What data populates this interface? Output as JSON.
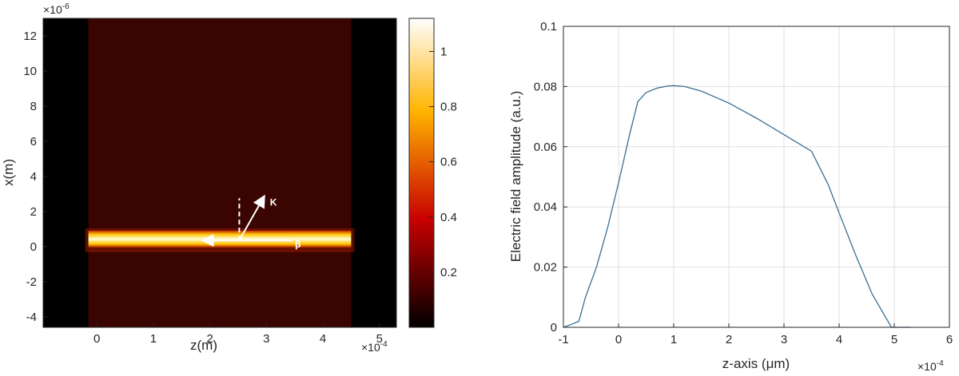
{
  "chart_data": [
    {
      "type": "heatmap",
      "xlabel": "z(m)",
      "ylabel": "x(m)",
      "x_multiplier": "×10",
      "x_multiplier_exp": "-4",
      "y_multiplier": "×10",
      "y_multiplier_exp": "-6",
      "xlim": [
        -0.95,
        5.3
      ],
      "ylim": [
        -4.6,
        13.0
      ],
      "x_ticks": [
        "0",
        "1",
        "2",
        "3",
        "4",
        "5"
      ],
      "y_ticks": [
        "-4",
        "-2",
        "0",
        "2",
        "4",
        "6",
        "8",
        "10",
        "12"
      ],
      "background_region": {
        "x": [
          -0.15,
          4.5
        ],
        "y": [
          -4.6,
          13.0
        ],
        "value": 0.05
      },
      "dark_bands": [
        {
          "x": [
            -0.95,
            -0.15
          ]
        },
        {
          "x": [
            4.5,
            5.3
          ]
        }
      ],
      "beam": {
        "x": [
          -0.15,
          4.5
        ],
        "y": [
          -0.05,
          0.9
        ],
        "peak_value": 1.1
      },
      "colorbar": {
        "range": [
          0,
          1.12
        ],
        "ticks": [
          "0.2",
          "0.4",
          "0.6",
          "0.8",
          "1"
        ],
        "colormap": "hot"
      },
      "annotations": {
        "k_label": "K",
        "beta_label": "β",
        "origin": [
          2.52,
          0.35
        ],
        "k_tip": [
          2.95,
          2.8
        ],
        "dashed_top": [
          2.52,
          2.75
        ],
        "beta_arrow_end": [
          1.9,
          0.35
        ],
        "beta_line_end": [
          3.45,
          0.35
        ]
      }
    },
    {
      "type": "line",
      "xlabel": "z-axis (μm)",
      "ylabel": "Electric field amplitude (a.u.)",
      "x_multiplier": "×10",
      "x_multiplier_exp": "-4",
      "xlim": [
        -1,
        6
      ],
      "ylim": [
        0,
        0.1
      ],
      "x_ticks": [
        "-1",
        "0",
        "1",
        "2",
        "3",
        "4",
        "5",
        "6"
      ],
      "y_ticks": [
        "0",
        "0.02",
        "0.04",
        "0.06",
        "0.08",
        "0.1"
      ],
      "grid": true,
      "line_color": "#3a6f95",
      "series": [
        {
          "x": [
            -1.0,
            -0.85,
            -0.72,
            -0.6,
            -0.4,
            -0.2,
            0.0,
            0.2,
            0.35,
            0.5,
            0.7,
            0.9,
            1.0,
            1.2,
            1.5,
            2.0,
            2.5,
            3.0,
            3.5,
            3.8,
            4.0,
            4.3,
            4.6,
            4.95,
            5.3
          ],
          "y": [
            0.0,
            0.001,
            0.002,
            0.01,
            0.02,
            0.033,
            0.048,
            0.064,
            0.075,
            0.078,
            0.0795,
            0.0802,
            0.0803,
            0.08,
            0.0785,
            0.0745,
            0.0695,
            0.064,
            0.0585,
            0.0475,
            0.038,
            0.024,
            0.011,
            0.0,
            0.0
          ]
        }
      ]
    }
  ]
}
